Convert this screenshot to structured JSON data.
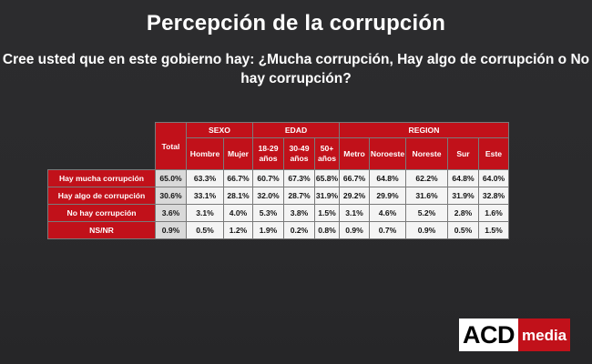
{
  "title": "Percepción de la corrupción",
  "question": "Cree usted que en este gobierno hay: ¿Mucha corrupción, Hay algo de corrupción o No hay corrupción?",
  "table": {
    "total_label": "Total",
    "groups": [
      "SEXO",
      "EDAD",
      "REGION"
    ],
    "subheaders": [
      "Hombre",
      "Mujer",
      "18-29 años",
      "30-49 años",
      "50+ años",
      "Metro",
      "Noroeste",
      "Noreste",
      "Sur",
      "Este"
    ],
    "rows": [
      {
        "label": "Hay mucha corrupción",
        "values": [
          "65.0%",
          "63.3%",
          "66.7%",
          "60.7%",
          "67.3%",
          "65.8%",
          "66.7%",
          "64.8%",
          "62.2%",
          "64.8%",
          "64.0%"
        ]
      },
      {
        "label": "Hay algo de corrupción",
        "values": [
          "30.6%",
          "33.1%",
          "28.1%",
          "32.0%",
          "28.7%",
          "31.9%",
          "29.2%",
          "29.9%",
          "31.6%",
          "31.9%",
          "32.8%"
        ]
      },
      {
        "label": "No hay corrupción",
        "values": [
          "3.6%",
          "3.1%",
          "4.0%",
          "5.3%",
          "3.8%",
          "1.5%",
          "3.1%",
          "4.6%",
          "5.2%",
          "2.8%",
          "1.6%"
        ]
      },
      {
        "label": "NS/NR",
        "values": [
          "0.9%",
          "0.5%",
          "1.2%",
          "1.9%",
          "0.2%",
          "0.8%",
          "0.9%",
          "0.7%",
          "0.9%",
          "0.5%",
          "1.5%"
        ]
      }
    ]
  },
  "logo": {
    "acd": "ACD",
    "media": "media"
  },
  "colors": {
    "accent_red": "#c1111a",
    "background": "#2a2a2c"
  }
}
